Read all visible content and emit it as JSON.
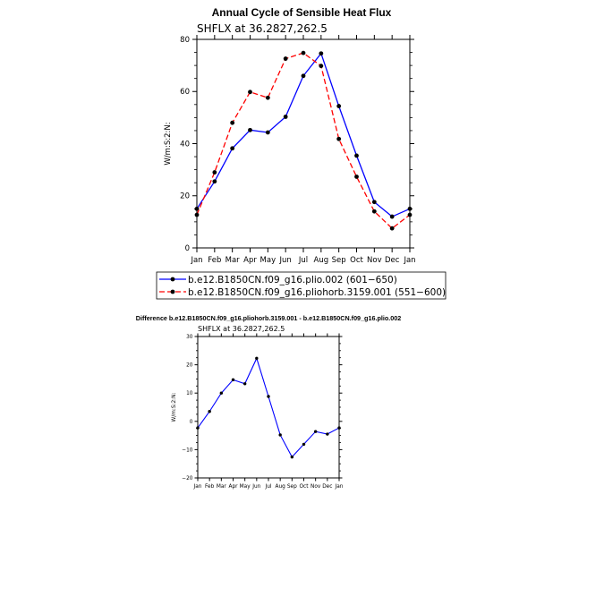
{
  "chart_data": [
    {
      "type": "line",
      "title": "Annual Cycle of Sensible Heat Flux",
      "subtitle": "SHFLX at 36.2827,262.5",
      "ylabel": "W/m:S:2:N:",
      "xlabel": "",
      "categories": [
        "Jan",
        "Feb",
        "Mar",
        "Apr",
        "May",
        "Jun",
        "Jul",
        "Aug",
        "Sep",
        "Oct",
        "Nov",
        "Dec",
        "Jan"
      ],
      "ylim": [
        0,
        80
      ],
      "yticks": [
        "0",
        "20",
        "40",
        "60",
        "80"
      ],
      "series": [
        {
          "name": "b.e12.B1850CN.f09_g16.plio.002 (601−650)",
          "color": "#0000ff",
          "dash": "solid",
          "values": [
            15,
            25.5,
            38.2,
            45.2,
            44.3,
            50.3,
            66,
            74.6,
            54.4,
            35.4,
            17.6,
            12,
            15
          ]
        },
        {
          "name": "b.e12.B1850CN.f09_g16.pliohorb.3159.001 (551−600)",
          "color": "#ff0000",
          "dash": "dashed",
          "values": [
            12.7,
            29,
            48,
            59.8,
            57.6,
            72.6,
            74.8,
            69.8,
            41.8,
            27.3,
            14,
            7.5,
            12.7
          ]
        }
      ],
      "legend_position": "bottom-left"
    },
    {
      "type": "line",
      "title": "Difference b.e12.B1850CN.f09_g16.pliohorb.3159.001 - b.e12.B1850CN.f09_g16.plio.002",
      "subtitle": "SHFLX at 36.2827,262.5",
      "ylabel": "W/m:S:2:N:",
      "xlabel": "",
      "categories": [
        "Jan",
        "Feb",
        "Mar",
        "Apr",
        "May",
        "Jun",
        "Jul",
        "Aug",
        "Sep",
        "Oct",
        "Nov",
        "Dec",
        "Jan"
      ],
      "ylim": [
        -20,
        30
      ],
      "yticks": [
        "−20",
        "−10",
        "0",
        "10",
        "20",
        "30"
      ],
      "series": [
        {
          "color": "#0000ff",
          "dash": "solid",
          "values": [
            -2.3,
            3.5,
            10,
            14.7,
            13.3,
            22.3,
            8.8,
            -4.8,
            -12.6,
            -8.1,
            -3.6,
            -4.5,
            -2.3
          ]
        }
      ]
    }
  ]
}
